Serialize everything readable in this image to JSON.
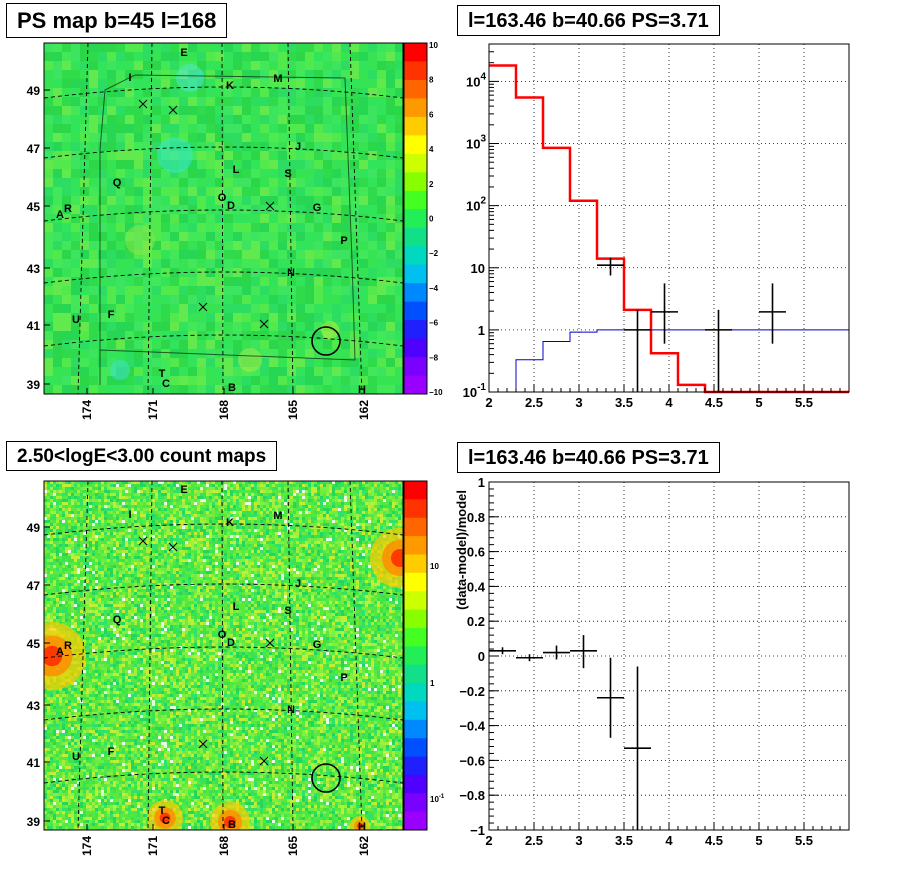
{
  "titles": {
    "ps_map": "PS map b=45 l=168",
    "spectrum": "l=163.46 b=40.66 PS=3.71",
    "count_map": "2.50<logE<3.00 count maps",
    "residual": "l=163.46 b=40.66 PS=3.71"
  },
  "colors": {
    "map_green": "#2ee04a",
    "model_red": "#ff0000",
    "bkg_blue": "#0000cc",
    "data_black": "#000000"
  },
  "chart_data": [
    {
      "type": "heatmap",
      "name": "ps-map",
      "title": "PS map b=45 l=168",
      "x_ticks": [
        "174",
        "171",
        "168",
        "165",
        "162"
      ],
      "y_ticks": [
        "49",
        "47",
        "45",
        "43",
        "41",
        "39"
      ],
      "colorbar_ticks": [
        "10",
        "8",
        "6",
        "4",
        "2",
        "0",
        "−2",
        "−4",
        "−6",
        "−8",
        "−10"
      ],
      "colorbar_range": [
        -10,
        10
      ],
      "source_labels": [
        "E",
        "I",
        "K",
        "M",
        "J",
        "L",
        "S",
        "Q",
        "O",
        "D",
        "G",
        "A",
        "R",
        "P",
        "N",
        "U",
        "F",
        "T",
        "C",
        "B",
        "H"
      ],
      "markers": "x",
      "circle_position": "lower-right"
    },
    {
      "type": "line",
      "name": "spectrum",
      "title": "l=163.46 b=40.66 PS=3.71",
      "xlim": [
        2,
        6
      ],
      "ylim": [
        0.1,
        40000
      ],
      "yscale": "log",
      "x_ticks": [
        "2",
        "2.5",
        "3",
        "3.5",
        "4",
        "4.5",
        "5",
        "5.5"
      ],
      "y_ticks": [
        "10^-1",
        "1",
        "10",
        "10^2",
        "10^3",
        "10^4"
      ],
      "grid": true,
      "series": [
        {
          "style": "red-step",
          "edges": [
            2,
            2.3,
            2.6,
            2.9,
            3.2,
            3.5,
            3.8,
            4.1,
            4.4,
            6
          ],
          "values": [
            18000,
            5500,
            850,
            120,
            14,
            2.1,
            0.42,
            0.13,
            0.1
          ]
        },
        {
          "style": "blue-step",
          "edges": [
            2,
            2.3,
            2.6,
            2.9,
            3.2,
            6
          ],
          "values": [
            0.1,
            0.33,
            0.65,
            0.92,
            1.0
          ]
        },
        {
          "style": "black-errorbars",
          "points": [
            {
              "x": 3.35,
              "xerr": 0.15,
              "y": 11,
              "ylo": 7.5,
              "yhi": 14.5
            },
            {
              "x": 3.65,
              "xerr": 0.15,
              "y": 1.0,
              "ylo": 0.1,
              "yhi": 2.1
            },
            {
              "x": 3.95,
              "xerr": 0.15,
              "y": 1.95,
              "ylo": 0.6,
              "yhi": 5.6
            },
            {
              "x": 4.55,
              "xerr": 0.15,
              "y": 1.0,
              "ylo": 0.1,
              "yhi": 2.1
            },
            {
              "x": 5.15,
              "xerr": 0.15,
              "y": 1.95,
              "ylo": 0.6,
              "yhi": 5.6
            }
          ]
        }
      ]
    },
    {
      "type": "heatmap",
      "name": "count-map",
      "title": "2.50<logE<3.00 count maps",
      "x_ticks": [
        "174",
        "171",
        "168",
        "165",
        "162"
      ],
      "y_ticks": [
        "49",
        "47",
        "45",
        "43",
        "41",
        "39"
      ],
      "colorbar_ticks": [
        "10",
        "1",
        "10^-1"
      ],
      "colorbar_scale": "log",
      "source_labels": [
        "E",
        "I",
        "K",
        "M",
        "J",
        "L",
        "S",
        "Q",
        "O",
        "D",
        "G",
        "A",
        "R",
        "P",
        "N",
        "U",
        "F",
        "T",
        "C",
        "B",
        "H"
      ],
      "markers": "x",
      "circle_position": "lower-right"
    },
    {
      "type": "scatter",
      "name": "residual",
      "title": "l=163.46 b=40.66 PS=3.71",
      "ylabel": "(data-model)/model",
      "xlim": [
        2,
        6
      ],
      "ylim": [
        -1,
        1
      ],
      "x_ticks": [
        "2",
        "2.5",
        "3",
        "3.5",
        "4",
        "4.5",
        "5",
        "5.5"
      ],
      "y_ticks": [
        "1",
        "0.8",
        "0.6",
        "0.4",
        "0.2",
        "0",
        "−0.2",
        "−0.4",
        "−0.6",
        "−0.8",
        "−1"
      ],
      "grid": true,
      "points": [
        {
          "x": 2.15,
          "xerr": 0.15,
          "y": 0.03,
          "ylo": 0.01,
          "yhi": 0.05
        },
        {
          "x": 2.45,
          "xerr": 0.15,
          "y": -0.01,
          "ylo": -0.03,
          "yhi": 0.01
        },
        {
          "x": 2.75,
          "xerr": 0.15,
          "y": 0.02,
          "ylo": -0.02,
          "yhi": 0.06
        },
        {
          "x": 3.05,
          "xerr": 0.15,
          "y": 0.03,
          "ylo": -0.07,
          "yhi": 0.12
        },
        {
          "x": 3.35,
          "xerr": 0.15,
          "y": -0.24,
          "ylo": -0.47,
          "yhi": -0.01
        },
        {
          "x": 3.65,
          "xerr": 0.15,
          "y": -0.53,
          "ylo": -1.0,
          "yhi": -0.06
        }
      ]
    }
  ]
}
